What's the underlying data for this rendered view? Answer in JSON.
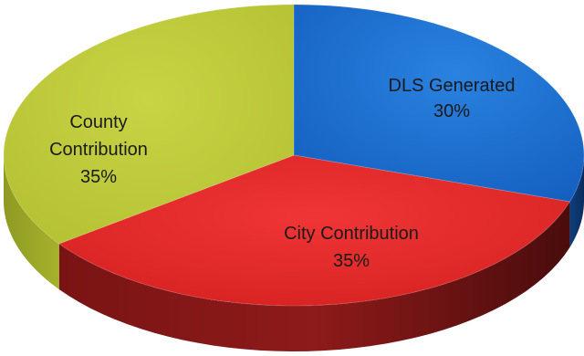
{
  "chart_data": {
    "type": "pie",
    "style": "3d",
    "title": "",
    "slices": [
      {
        "label": "DLS Generated",
        "value": 30,
        "value_label": "30%",
        "color": "#1a70d2"
      },
      {
        "label": "City Contribution",
        "value": 35,
        "value_label": "35%",
        "color": "#e52b2b"
      },
      {
        "label": "County",
        "label_line2": "Contribution",
        "value": 35,
        "value_label": "35%",
        "color": "#bdca3a"
      }
    ]
  }
}
